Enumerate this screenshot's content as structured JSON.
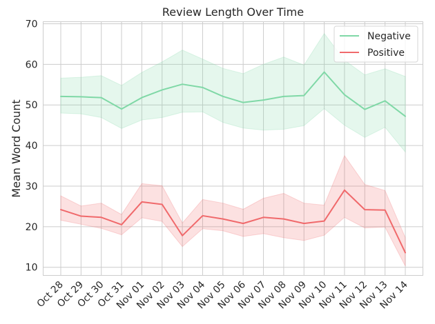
{
  "chart_data": {
    "type": "line",
    "title": "Review Length Over Time",
    "xlabel": "",
    "ylabel": "Mean Word Count",
    "categories": [
      "Oct 28",
      "Oct 29",
      "Oct 30",
      "Oct 31",
      "Nov 01",
      "Nov 02",
      "Nov 03",
      "Nov 04",
      "Nov 05",
      "Nov 06",
      "Nov 07",
      "Nov 08",
      "Nov 09",
      "Nov 10",
      "Nov 11",
      "Nov 12",
      "Nov 13",
      "Nov 14"
    ],
    "ylim": [
      8,
      70.5
    ],
    "yticks": [
      10,
      20,
      30,
      40,
      50,
      60,
      70
    ],
    "grid": true,
    "legend_position": "top-right",
    "series": [
      {
        "name": "Negative",
        "color": "#7fd8a6",
        "values": [
          52.1,
          52.0,
          51.8,
          49.0,
          51.8,
          53.7,
          55.1,
          54.3,
          52.1,
          50.6,
          51.2,
          52.1,
          52.3,
          58.1,
          52.5,
          48.9,
          51.0,
          47.2
        ],
        "lower": [
          48.0,
          47.8,
          46.9,
          44.2,
          46.3,
          46.9,
          48.2,
          48.3,
          45.7,
          44.3,
          43.8,
          44.0,
          44.9,
          49.1,
          45.0,
          42.0,
          44.5,
          38.4
        ],
        "upper": [
          56.6,
          56.8,
          57.2,
          54.8,
          58.0,
          60.6,
          63.5,
          61.3,
          59.0,
          57.7,
          60.0,
          61.8,
          59.8,
          67.6,
          61.0,
          57.4,
          58.9,
          57.0
        ]
      },
      {
        "name": "Positive",
        "color": "#f0696b",
        "values": [
          24.2,
          22.6,
          22.3,
          20.5,
          26.1,
          25.5,
          17.8,
          22.7,
          21.9,
          20.8,
          22.3,
          21.9,
          20.8,
          21.4,
          29.0,
          24.2,
          24.1,
          13.6
        ],
        "lower": [
          21.6,
          20.6,
          19.6,
          18.0,
          22.2,
          21.3,
          15.1,
          19.5,
          19.0,
          17.6,
          18.3,
          17.3,
          16.6,
          17.9,
          22.3,
          19.7,
          19.9,
          10.3
        ],
        "upper": [
          27.6,
          25.1,
          25.8,
          23.0,
          30.6,
          30.1,
          20.9,
          26.7,
          25.8,
          24.3,
          27.0,
          28.2,
          25.8,
          25.3,
          37.5,
          30.4,
          28.9,
          17.3
        ]
      }
    ]
  }
}
